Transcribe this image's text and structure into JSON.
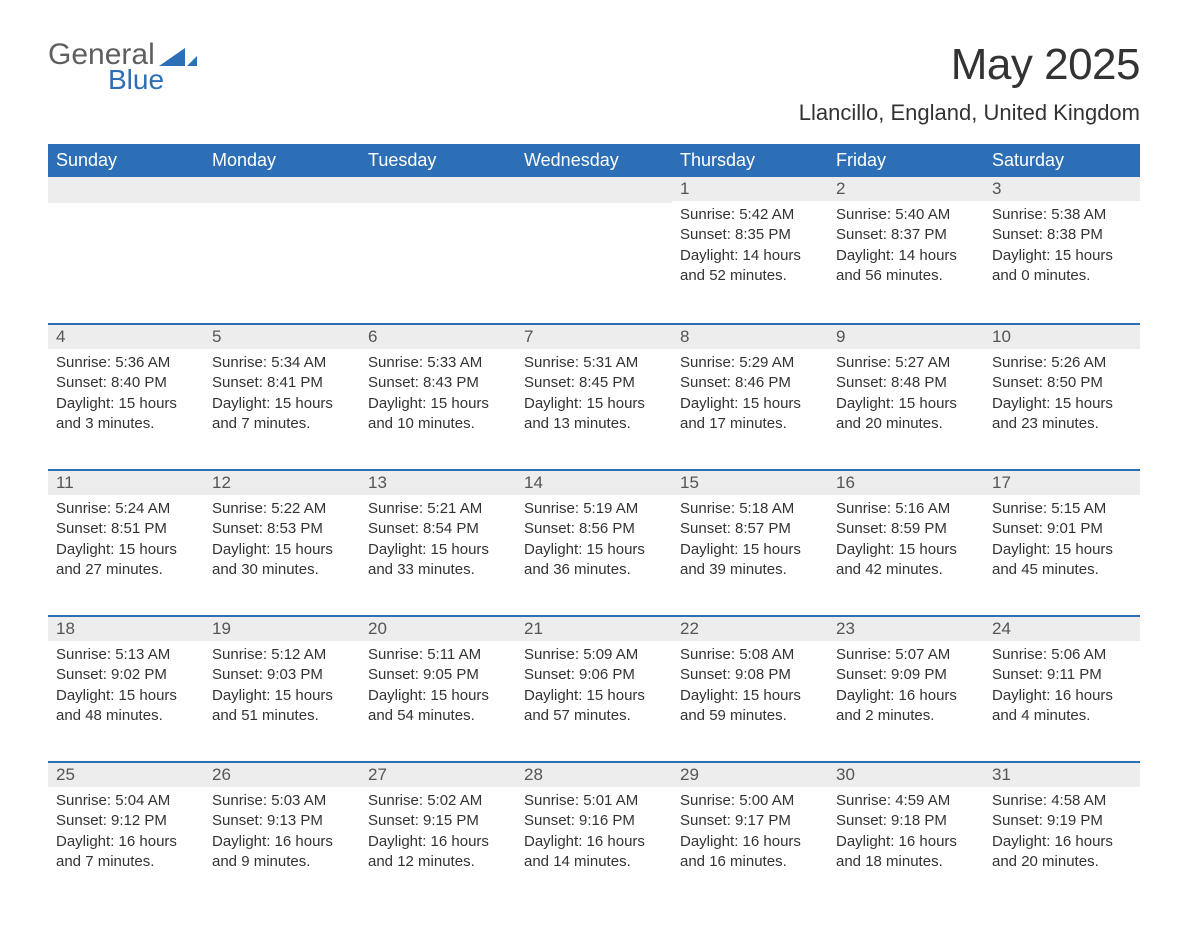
{
  "brand": {
    "line1": "General",
    "line2": "Blue"
  },
  "title": "May 2025",
  "subtitle": "Llancillo, England, United Kingdom",
  "colors": {
    "primary": "#2d6fb6",
    "header_bg": "#2d6fb6",
    "header_fg": "#ffffff",
    "daynum_bg": "#ededed",
    "text": "#333333",
    "page_bg": "#ffffff"
  },
  "weekdays": [
    "Sunday",
    "Monday",
    "Tuesday",
    "Wednesday",
    "Thursday",
    "Friday",
    "Saturday"
  ],
  "layout": {
    "weeks": 5,
    "cols": 7,
    "first_day_col": 4
  },
  "typography": {
    "title_fontsize": 44,
    "subtitle_fontsize": 22,
    "weekday_fontsize": 18,
    "daynum_fontsize": 17,
    "body_fontsize": 15
  },
  "days": [
    {
      "n": 1,
      "sunrise": "5:42 AM",
      "sunset": "8:35 PM",
      "daylight": "14 hours and 52 minutes."
    },
    {
      "n": 2,
      "sunrise": "5:40 AM",
      "sunset": "8:37 PM",
      "daylight": "14 hours and 56 minutes."
    },
    {
      "n": 3,
      "sunrise": "5:38 AM",
      "sunset": "8:38 PM",
      "daylight": "15 hours and 0 minutes."
    },
    {
      "n": 4,
      "sunrise": "5:36 AM",
      "sunset": "8:40 PM",
      "daylight": "15 hours and 3 minutes."
    },
    {
      "n": 5,
      "sunrise": "5:34 AM",
      "sunset": "8:41 PM",
      "daylight": "15 hours and 7 minutes."
    },
    {
      "n": 6,
      "sunrise": "5:33 AM",
      "sunset": "8:43 PM",
      "daylight": "15 hours and 10 minutes."
    },
    {
      "n": 7,
      "sunrise": "5:31 AM",
      "sunset": "8:45 PM",
      "daylight": "15 hours and 13 minutes."
    },
    {
      "n": 8,
      "sunrise": "5:29 AM",
      "sunset": "8:46 PM",
      "daylight": "15 hours and 17 minutes."
    },
    {
      "n": 9,
      "sunrise": "5:27 AM",
      "sunset": "8:48 PM",
      "daylight": "15 hours and 20 minutes."
    },
    {
      "n": 10,
      "sunrise": "5:26 AM",
      "sunset": "8:50 PM",
      "daylight": "15 hours and 23 minutes."
    },
    {
      "n": 11,
      "sunrise": "5:24 AM",
      "sunset": "8:51 PM",
      "daylight": "15 hours and 27 minutes."
    },
    {
      "n": 12,
      "sunrise": "5:22 AM",
      "sunset": "8:53 PM",
      "daylight": "15 hours and 30 minutes."
    },
    {
      "n": 13,
      "sunrise": "5:21 AM",
      "sunset": "8:54 PM",
      "daylight": "15 hours and 33 minutes."
    },
    {
      "n": 14,
      "sunrise": "5:19 AM",
      "sunset": "8:56 PM",
      "daylight": "15 hours and 36 minutes."
    },
    {
      "n": 15,
      "sunrise": "5:18 AM",
      "sunset": "8:57 PM",
      "daylight": "15 hours and 39 minutes."
    },
    {
      "n": 16,
      "sunrise": "5:16 AM",
      "sunset": "8:59 PM",
      "daylight": "15 hours and 42 minutes."
    },
    {
      "n": 17,
      "sunrise": "5:15 AM",
      "sunset": "9:01 PM",
      "daylight": "15 hours and 45 minutes."
    },
    {
      "n": 18,
      "sunrise": "5:13 AM",
      "sunset": "9:02 PM",
      "daylight": "15 hours and 48 minutes."
    },
    {
      "n": 19,
      "sunrise": "5:12 AM",
      "sunset": "9:03 PM",
      "daylight": "15 hours and 51 minutes."
    },
    {
      "n": 20,
      "sunrise": "5:11 AM",
      "sunset": "9:05 PM",
      "daylight": "15 hours and 54 minutes."
    },
    {
      "n": 21,
      "sunrise": "5:09 AM",
      "sunset": "9:06 PM",
      "daylight": "15 hours and 57 minutes."
    },
    {
      "n": 22,
      "sunrise": "5:08 AM",
      "sunset": "9:08 PM",
      "daylight": "15 hours and 59 minutes."
    },
    {
      "n": 23,
      "sunrise": "5:07 AM",
      "sunset": "9:09 PM",
      "daylight": "16 hours and 2 minutes."
    },
    {
      "n": 24,
      "sunrise": "5:06 AM",
      "sunset": "9:11 PM",
      "daylight": "16 hours and 4 minutes."
    },
    {
      "n": 25,
      "sunrise": "5:04 AM",
      "sunset": "9:12 PM",
      "daylight": "16 hours and 7 minutes."
    },
    {
      "n": 26,
      "sunrise": "5:03 AM",
      "sunset": "9:13 PM",
      "daylight": "16 hours and 9 minutes."
    },
    {
      "n": 27,
      "sunrise": "5:02 AM",
      "sunset": "9:15 PM",
      "daylight": "16 hours and 12 minutes."
    },
    {
      "n": 28,
      "sunrise": "5:01 AM",
      "sunset": "9:16 PM",
      "daylight": "16 hours and 14 minutes."
    },
    {
      "n": 29,
      "sunrise": "5:00 AM",
      "sunset": "9:17 PM",
      "daylight": "16 hours and 16 minutes."
    },
    {
      "n": 30,
      "sunrise": "4:59 AM",
      "sunset": "9:18 PM",
      "daylight": "16 hours and 18 minutes."
    },
    {
      "n": 31,
      "sunrise": "4:58 AM",
      "sunset": "9:19 PM",
      "daylight": "16 hours and 20 minutes."
    }
  ],
  "labels": {
    "sunrise": "Sunrise:",
    "sunset": "Sunset:",
    "daylight": "Daylight:"
  }
}
